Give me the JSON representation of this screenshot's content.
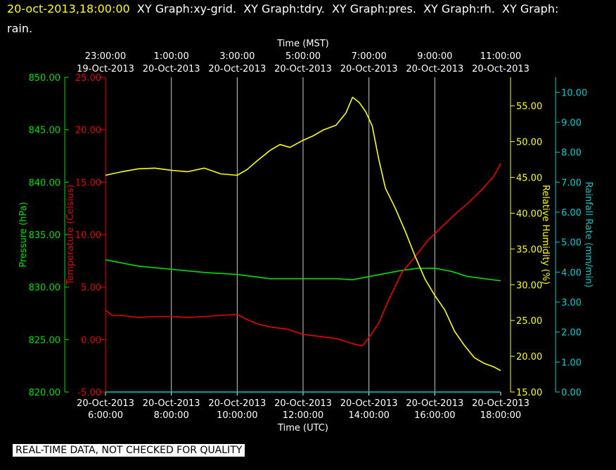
{
  "header": {
    "timestamp": "20-oct-2013,18:00:00",
    "line1_rest": "  XY Graph:xy-grid.  XY Graph:tdry.  XY Graph:pres.  XY Graph:rh.  XY Graph:",
    "line2": "rain."
  },
  "notice": "REAL-TIME DATA, NOT CHECKED FOR QUALITY",
  "colors": {
    "background": "#000000",
    "pressure": "#00dd00",
    "temperature": "#ee0000",
    "humidity": "#ffff00",
    "rain": "#00cccc",
    "grid": "#cccccc",
    "text": "#ffffff"
  },
  "chart_data": {
    "type": "line",
    "grid": true,
    "x_bottom": {
      "label": "Time (UTC)",
      "range_hours": [
        6,
        18
      ],
      "ticks": [
        {
          "h": 6,
          "date": "20-Oct-2013",
          "time": "6:00:00"
        },
        {
          "h": 8,
          "date": "20-Oct-2013",
          "time": "8:00:00"
        },
        {
          "h": 10,
          "date": "20-Oct-2013",
          "time": "10:00:00"
        },
        {
          "h": 12,
          "date": "20-Oct-2013",
          "time": "12:00:00"
        },
        {
          "h": 14,
          "date": "20-Oct-2013",
          "time": "14:00:00"
        },
        {
          "h": 16,
          "date": "20-Oct-2013",
          "time": "16:00:00"
        },
        {
          "h": 18,
          "date": "20-Oct-2013",
          "time": "18:00:00"
        }
      ]
    },
    "x_top": {
      "label": "Time (MST)",
      "ticks": [
        {
          "h": 6,
          "time": "23:00:00",
          "date": "19-Oct-2013"
        },
        {
          "h": 8,
          "time": "1:00:00",
          "date": "20-Oct-2013"
        },
        {
          "h": 10,
          "time": "3:00:00",
          "date": "20-Oct-2013"
        },
        {
          "h": 12,
          "time": "5:00:00",
          "date": "20-Oct-2013"
        },
        {
          "h": 14,
          "time": "7:00:00",
          "date": "20-Oct-2013"
        },
        {
          "h": 16,
          "time": "9:00:00",
          "date": "20-Oct-2013"
        },
        {
          "h": 18,
          "time": "11:00:00",
          "date": "20-Oct-2013"
        }
      ]
    },
    "y_axes": {
      "pressure": {
        "label": "Pressure (hPa)",
        "range": [
          820,
          850
        ],
        "ticks": [
          "820.00",
          "825.00",
          "830.00",
          "835.00",
          "840.00",
          "845.00",
          "850.00"
        ]
      },
      "temperature": {
        "label": "Temperature (Celsius)",
        "range": [
          -5,
          25
        ],
        "ticks": [
          "-5.00",
          "0.00",
          "5.00",
          "10.00",
          "15.00",
          "20.00",
          "25.00"
        ]
      },
      "humidity": {
        "label": "Relative Humidity (%)",
        "range": [
          15,
          59
        ],
        "ticks": [
          "15.00",
          "20.00",
          "25.00",
          "30.00",
          "35.00",
          "40.00",
          "45.00",
          "50.00",
          "55.00"
        ]
      },
      "rain": {
        "label": "Rainfall Rate (mm/min)",
        "range": [
          0,
          10.5
        ],
        "ticks": [
          "0.00",
          "1.00",
          "2.00",
          "3.00",
          "4.00",
          "5.00",
          "6.00",
          "7.00",
          "8.00",
          "9.00",
          "10.00"
        ]
      }
    },
    "series": [
      {
        "key": "pressure",
        "axis": "pressure",
        "x": [
          6,
          7,
          8,
          9,
          10,
          10.5,
          11,
          12,
          13,
          13.5,
          14,
          15,
          15.5,
          16,
          16.5,
          17,
          18
        ],
        "y": [
          832.6,
          832.0,
          831.7,
          831.4,
          831.2,
          831.0,
          830.8,
          830.8,
          830.8,
          830.7,
          831.0,
          831.6,
          831.8,
          831.8,
          831.5,
          831.0,
          830.6
        ]
      },
      {
        "key": "temperature",
        "axis": "temperature",
        "x": [
          6,
          6.2,
          6.5,
          7,
          7.5,
          8,
          8.5,
          9,
          9.5,
          10,
          10.3,
          10.6,
          11,
          11.5,
          12,
          12.5,
          13,
          13.5,
          13.8,
          14,
          14.3,
          14.6,
          15,
          15.4,
          15.8,
          16.2,
          16.6,
          17,
          17.4,
          17.8,
          18
        ],
        "y": [
          2.8,
          2.3,
          2.3,
          2.1,
          2.2,
          2.2,
          2.1,
          2.2,
          2.3,
          2.4,
          1.9,
          1.5,
          1.2,
          1.0,
          0.5,
          0.3,
          0.1,
          -0.4,
          -0.6,
          0.2,
          1.6,
          3.8,
          6.4,
          7.9,
          9.5,
          10.7,
          11.9,
          13.0,
          14.2,
          15.6,
          16.8
        ]
      },
      {
        "key": "humidity",
        "axis": "humidity",
        "x": [
          6,
          6.5,
          7,
          7.5,
          8,
          8.5,
          9,
          9.5,
          10,
          10.3,
          10.6,
          11,
          11.3,
          11.6,
          12,
          12.3,
          12.6,
          13,
          13.3,
          13.5,
          13.7,
          13.9,
          14.1,
          14.3,
          14.5,
          14.8,
          15.1,
          15.4,
          15.7,
          16,
          16.3,
          16.6,
          16.9,
          17.2,
          17.5,
          17.8,
          18
        ],
        "y": [
          45.3,
          45.8,
          46.2,
          46.3,
          46.0,
          45.8,
          46.3,
          45.5,
          45.3,
          46.1,
          47.3,
          48.8,
          49.6,
          49.2,
          50.2,
          50.8,
          51.6,
          52.3,
          54.0,
          56.2,
          55.5,
          54.2,
          52.2,
          47.5,
          43.5,
          40.7,
          37.5,
          34.0,
          30.8,
          28.5,
          26.5,
          23.5,
          21.5,
          19.8,
          19.0,
          18.5,
          18.0
        ]
      },
      {
        "key": "rain",
        "axis": "rain",
        "x": [
          6,
          18
        ],
        "y": [
          0,
          0
        ]
      }
    ]
  }
}
